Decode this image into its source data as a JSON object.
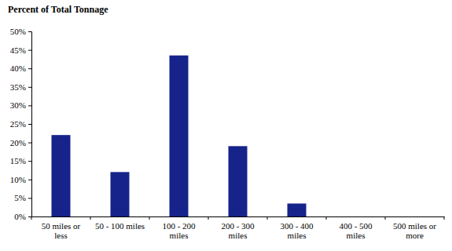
{
  "chart_data": {
    "type": "bar",
    "ylabel": "Percent of Total Tonnage",
    "categories": [
      "50 miles or less",
      "50 - 100 miles",
      "100 - 200 miles",
      "200 - 300 miles",
      "300 - 400 miles",
      "400 - 500 miles",
      "500 miles or more"
    ],
    "values": [
      22,
      12,
      43.5,
      19,
      3.5,
      0,
      0
    ],
    "color": "#16238a",
    "ylim": [
      0,
      50
    ],
    "yticks": [
      {
        "value": 0,
        "label": "0%"
      },
      {
        "value": 5,
        "label": "5%"
      },
      {
        "value": 10,
        "label": "10%"
      },
      {
        "value": 15,
        "label": "15%"
      },
      {
        "value": 20,
        "label": "20%"
      },
      {
        "value": 25,
        "label": "25%"
      },
      {
        "value": 30,
        "label": "30%"
      },
      {
        "value": 35,
        "label": "35%"
      },
      {
        "value": 40,
        "label": "40%"
      },
      {
        "value": 45,
        "label": "45%"
      },
      {
        "value": 50,
        "label": "50%"
      }
    ],
    "grid": false
  }
}
